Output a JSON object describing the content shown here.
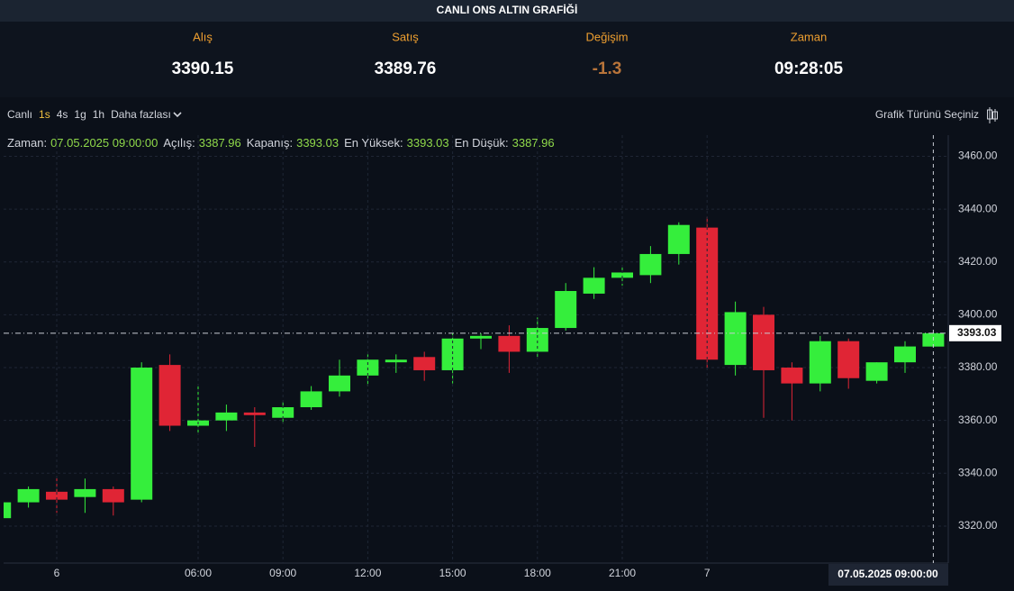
{
  "header": {
    "title": "CANLI ONS ALTIN GRAFİĞİ",
    "quotes": [
      {
        "label": "Alış",
        "value": 3390.15
      },
      {
        "label": "Satış",
        "value": 3389.76
      },
      {
        "label": "Değişim",
        "value": -1.3
      },
      {
        "label": "Zaman",
        "value": "09:28:05"
      }
    ]
  },
  "toolbar": {
    "intervals": [
      "Canlı",
      "1s",
      "4s",
      "1g",
      "1h",
      "Daha fazlası"
    ],
    "active": 1,
    "chart_type_button": "Grafik Türünü Seçiniz"
  },
  "info": {
    "labels": [
      "Zaman:",
      "Açılış:",
      "Kapanış:",
      "En Yüksek:",
      "En Düşük:"
    ],
    "time": "07.05.2025 09:00:00"
  },
  "chart_data": {
    "type": "candlestick",
    "categories": [
      null,
      null,
      "6",
      null,
      null,
      null,
      null,
      "06:00",
      null,
      null,
      "09:00",
      null,
      null,
      "12:00",
      null,
      null,
      "15:00",
      null,
      null,
      "18:00",
      null,
      null,
      "21:00",
      null,
      null,
      "7",
      null,
      null,
      null,
      null,
      null,
      null,
      null,
      null
    ],
    "open": [
      3323,
      3329,
      3333,
      3331,
      3334,
      3330,
      3381,
      3358,
      3360,
      3363,
      3361,
      3365,
      3371,
      3377,
      3382,
      3384,
      3379,
      3391,
      3392,
      3386,
      3395,
      3408,
      3414,
      3415,
      3423,
      3433,
      3381,
      3400,
      3380,
      3374,
      3390,
      3375,
      3382,
      3387.96
    ],
    "high": [
      3330,
      3335,
      3339,
      3338,
      3335,
      3382,
      3385,
      3373,
      3366,
      3365,
      3367,
      3373,
      3383,
      3385,
      3385,
      3386,
      3393,
      3393,
      3396,
      3399,
      3412,
      3418,
      3418,
      3426,
      3435,
      3437,
      3405,
      3403,
      3382,
      3392,
      3391,
      3382,
      3390,
      3393.03
    ],
    "low": [
      3322,
      3327,
      3325,
      3325,
      3324,
      3329,
      3356,
      3355,
      3356,
      3350,
      3359,
      3364,
      3369,
      3373,
      3378,
      3375,
      3374,
      3387,
      3378,
      3384,
      3394,
      3406,
      3411,
      3412,
      3419,
      3380,
      3377,
      3361,
      3360,
      3371,
      3372,
      3374,
      3378,
      3387.96
    ],
    "close": [
      3329,
      3334,
      3330,
      3334,
      3329,
      3380,
      3358,
      3360,
      3363,
      3362,
      3365,
      3371,
      3377,
      3383,
      3383,
      3379,
      3391,
      3392,
      3386,
      3395,
      3409,
      3414,
      3416,
      3423,
      3434,
      3383,
      3401,
      3379,
      3374,
      3390,
      3376,
      3382,
      3388,
      3393.03
    ],
    "up_color": "#35ee3c",
    "down_color": "#e02535",
    "ylim": [
      3306,
      3468
    ],
    "yticks": [
      {
        "value": 3320,
        "label": "3320.00"
      },
      {
        "value": 3340,
        "label": "3340.00"
      },
      {
        "value": 3360,
        "label": "3360.00"
      },
      {
        "value": 3380,
        "label": "3380.00"
      },
      {
        "value": 3400,
        "label": "3400.00"
      },
      {
        "value": 3420,
        "label": "3420.00"
      },
      {
        "value": 3440,
        "label": "3440.00"
      },
      {
        "value": 3460,
        "label": "3460.00"
      }
    ],
    "grid": true
  }
}
